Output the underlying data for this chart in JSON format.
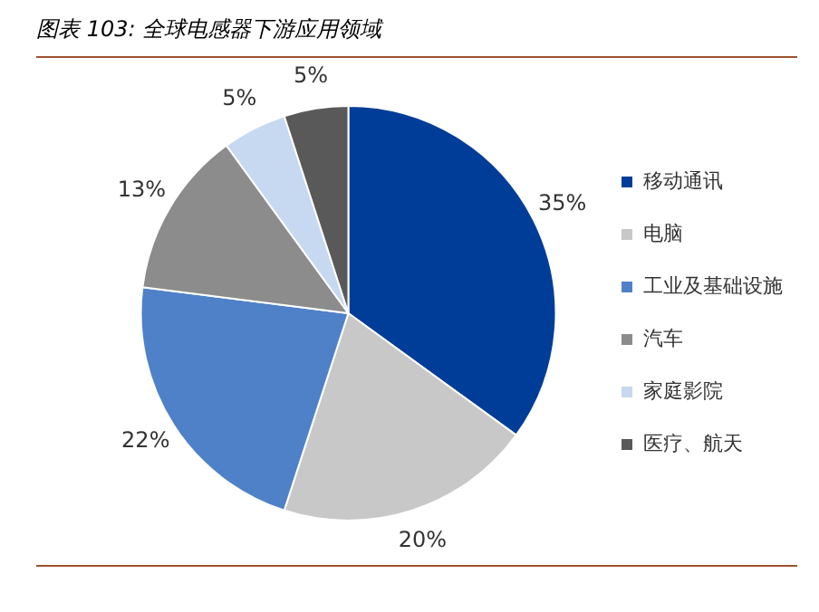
{
  "chart_data": {
    "type": "pie",
    "title": "图表 103:  全球电感器下游应用领域",
    "categories": [
      "移动通讯",
      "电脑",
      "工业及基础设施",
      "汽车",
      "家庭影院",
      "医疗、航天"
    ],
    "values": [
      35,
      20,
      22,
      13,
      5,
      5
    ],
    "colors": [
      "#003d99",
      "#c8c8c8",
      "#4f81c8",
      "#8c8c8c",
      "#c6d9f1",
      "#595959"
    ],
    "value_labels": [
      "35%",
      "20%",
      "22%",
      "13%",
      "5%",
      "5%"
    ],
    "legend": "right"
  }
}
